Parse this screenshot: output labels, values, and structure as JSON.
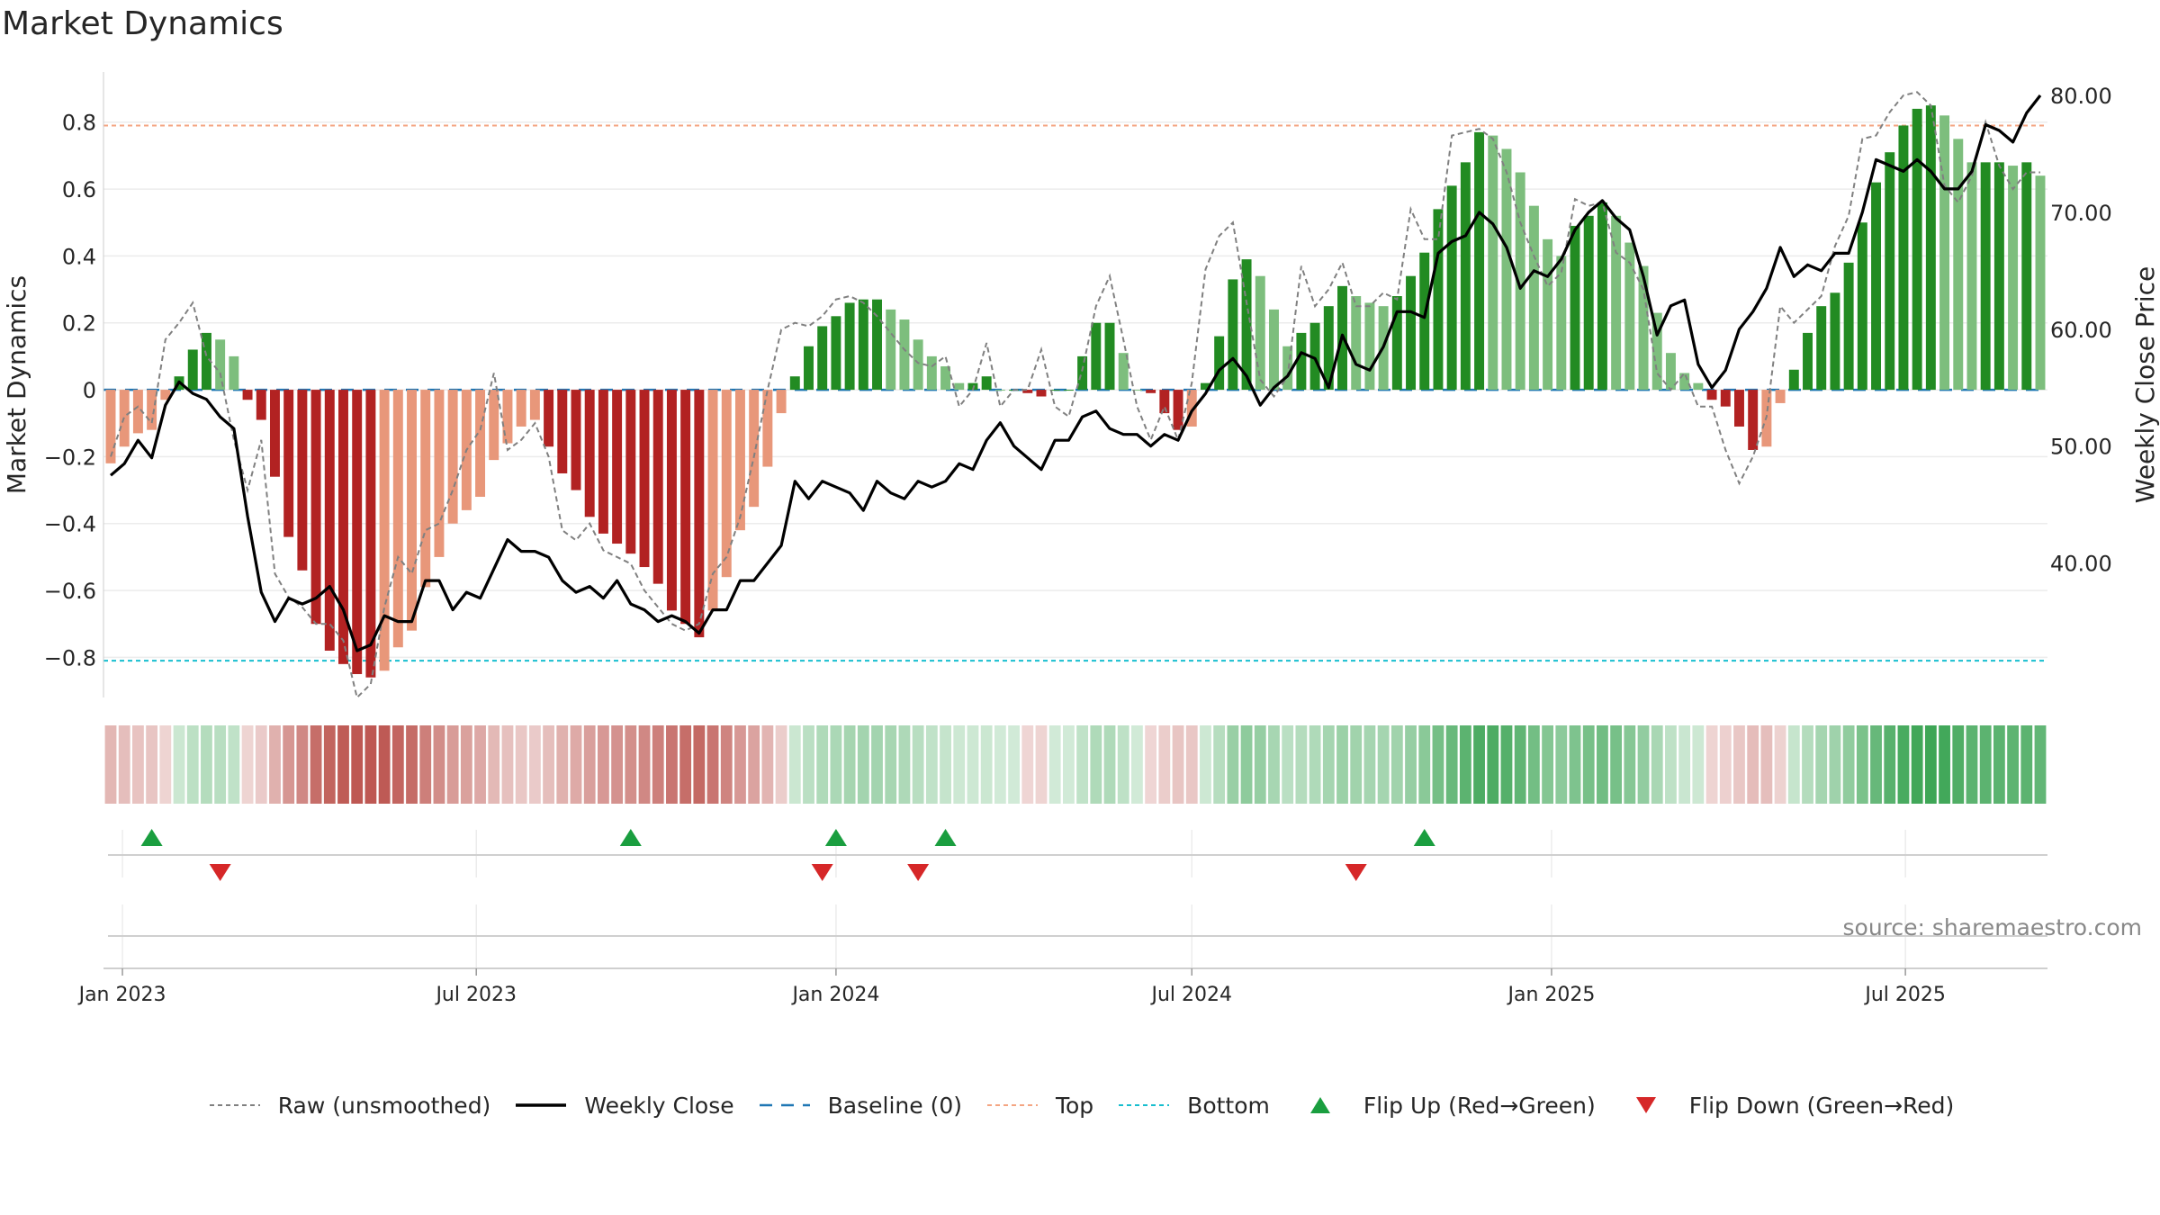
{
  "title": "Market Dynamics",
  "source": "source: sharemaestro.com",
  "colors": {
    "deep_green": "#228B22",
    "light_green": "#7DBE7D",
    "deep_red": "#B22222",
    "light_red": "#E8977A",
    "close": "#000000",
    "raw": "#808080",
    "baseline": "#1F77B4",
    "top": "#F4A582",
    "bottom": "#17BECF",
    "flip_up": "#1A9E3F",
    "flip_down": "#D62728"
  },
  "legend": [
    {
      "key": "raw",
      "label": "Raw (unsmoothed)"
    },
    {
      "key": "close",
      "label": "Weekly Close"
    },
    {
      "key": "baseline",
      "label": "Baseline (0)"
    },
    {
      "key": "top",
      "label": "Top"
    },
    {
      "key": "bottom",
      "label": "Bottom"
    },
    {
      "key": "flip_up",
      "label": "Flip Up (Red→Green)"
    },
    {
      "key": "flip_down",
      "label": "Flip Down (Green→Red)"
    }
  ],
  "chart_data": {
    "type": "bar",
    "title": "Market Dynamics",
    "x_start": "2022-12-26",
    "x_interval_days": 7,
    "y_left": {
      "label": "Market Dynamics",
      "range": [
        -0.92,
        0.95
      ],
      "ticks": [
        0.8,
        0.6,
        0.4,
        0.2,
        0,
        -0.2,
        -0.4,
        -0.6,
        -0.8
      ]
    },
    "y_right": {
      "label": "Weekly Close Price",
      "range": [
        28.5,
        82.0
      ],
      "ticks": [
        "80.00",
        "70.00",
        "60.00",
        "50.00",
        "40.00"
      ]
    },
    "x_ticks": [
      {
        "date": "2023-01-01",
        "label": "Jan 2023"
      },
      {
        "date": "2023-07-01",
        "label": "Jul 2023"
      },
      {
        "date": "2024-01-01",
        "label": "Jan 2024"
      },
      {
        "date": "2024-07-01",
        "label": "Jul 2024"
      },
      {
        "date": "2025-01-01",
        "label": "Jan 2025"
      },
      {
        "date": "2025-07-01",
        "label": "Jul 2025"
      }
    ],
    "reference_lines": {
      "baseline": 0,
      "top": 0.79,
      "bottom": -0.81
    },
    "values": [
      -0.22,
      -0.17,
      -0.13,
      -0.12,
      -0.03,
      0.04,
      0.12,
      0.17,
      0.15,
      0.1,
      -0.03,
      -0.09,
      -0.26,
      -0.44,
      -0.54,
      -0.7,
      -0.78,
      -0.82,
      -0.85,
      -0.86,
      -0.84,
      -0.77,
      -0.72,
      -0.59,
      -0.5,
      -0.4,
      -0.36,
      -0.32,
      -0.21,
      -0.16,
      -0.11,
      -0.09,
      -0.17,
      -0.25,
      -0.3,
      -0.38,
      -0.43,
      -0.46,
      -0.49,
      -0.53,
      -0.58,
      -0.66,
      -0.7,
      -0.74,
      -0.66,
      -0.56,
      -0.42,
      -0.35,
      -0.23,
      -0.07,
      0.04,
      0.13,
      0.19,
      0.22,
      0.26,
      0.27,
      0.27,
      0.24,
      0.21,
      0.15,
      0.1,
      0.07,
      0.02,
      0.02,
      0.04,
      0.0,
      0.0,
      -0.01,
      -0.02,
      0.0,
      0.0,
      0.1,
      0.2,
      0.2,
      0.11,
      0.0,
      -0.01,
      -0.07,
      -0.12,
      -0.11,
      0.02,
      0.16,
      0.33,
      0.39,
      0.34,
      0.24,
      0.13,
      0.17,
      0.2,
      0.25,
      0.31,
      0.28,
      0.26,
      0.25,
      0.28,
      0.34,
      0.41,
      0.54,
      0.61,
      0.68,
      0.77,
      0.76,
      0.72,
      0.65,
      0.55,
      0.45,
      0.4,
      0.49,
      0.52,
      0.56,
      0.52,
      0.44,
      0.37,
      0.23,
      0.11,
      0.05,
      0.02,
      -0.03,
      -0.05,
      -0.11,
      -0.18,
      -0.17,
      -0.04,
      0.06,
      0.17,
      0.25,
      0.29,
      0.38,
      0.5,
      0.62,
      0.71,
      0.79,
      0.84,
      0.85,
      0.82,
      0.75,
      0.68,
      0.68,
      0.68,
      0.67,
      0.68,
      0.64
    ],
    "raw": [
      -0.2,
      -0.08,
      -0.05,
      -0.1,
      0.15,
      0.2,
      0.26,
      0.1,
      0.05,
      -0.15,
      -0.3,
      -0.15,
      -0.55,
      -0.62,
      -0.65,
      -0.7,
      -0.7,
      -0.75,
      -0.92,
      -0.88,
      -0.65,
      -0.5,
      -0.55,
      -0.42,
      -0.4,
      -0.3,
      -0.18,
      -0.12,
      0.05,
      -0.18,
      -0.15,
      -0.1,
      -0.2,
      -0.42,
      -0.45,
      -0.4,
      -0.48,
      -0.5,
      -0.52,
      -0.6,
      -0.65,
      -0.7,
      -0.72,
      -0.7,
      -0.55,
      -0.5,
      -0.38,
      -0.2,
      0.0,
      0.18,
      0.2,
      0.19,
      0.22,
      0.27,
      0.28,
      0.26,
      0.22,
      0.17,
      0.12,
      0.08,
      0.07,
      0.1,
      -0.05,
      0.0,
      0.14,
      -0.05,
      0.0,
      0.0,
      0.12,
      -0.05,
      -0.08,
      0.06,
      0.25,
      0.34,
      0.15,
      -0.05,
      -0.15,
      -0.05,
      -0.15,
      0.02,
      0.36,
      0.46,
      0.5,
      0.26,
      0.03,
      -0.02,
      0.04,
      0.37,
      0.25,
      0.3,
      0.38,
      0.25,
      0.25,
      0.29,
      0.27,
      0.54,
      0.45,
      0.45,
      0.76,
      0.77,
      0.78,
      0.75,
      0.65,
      0.5,
      0.4,
      0.31,
      0.35,
      0.57,
      0.55,
      0.56,
      0.41,
      0.38,
      0.3,
      0.05,
      0.0,
      0.05,
      -0.05,
      -0.05,
      -0.18,
      -0.28,
      -0.2,
      -0.08,
      0.25,
      0.2,
      0.24,
      0.28,
      0.43,
      0.52,
      0.75,
      0.76,
      0.83,
      0.88,
      0.89,
      0.85,
      0.61,
      0.56,
      0.64,
      0.8,
      0.67,
      0.6,
      0.65,
      0.65
    ],
    "close": [
      47.5,
      48.5,
      50.5,
      49.0,
      53.5,
      55.5,
      54.5,
      54.0,
      52.5,
      51.5,
      44.0,
      37.5,
      35.0,
      37.0,
      36.5,
      37.0,
      38.0,
      36.0,
      32.5,
      33.0,
      35.5,
      35.0,
      35.0,
      38.5,
      38.5,
      36.0,
      37.5,
      37.0,
      39.5,
      42.0,
      41.0,
      41.0,
      40.5,
      38.5,
      37.5,
      38.0,
      37.0,
      38.5,
      36.5,
      36.0,
      35.0,
      35.5,
      35.0,
      34.0,
      36.0,
      36.0,
      38.5,
      38.5,
      40.0,
      41.5,
      47.0,
      45.5,
      47.0,
      46.5,
      46.0,
      44.5,
      47.0,
      46.0,
      45.5,
      47.0,
      46.5,
      47.0,
      48.5,
      48.0,
      50.5,
      52.0,
      50.0,
      49.0,
      48.0,
      50.5,
      50.5,
      52.5,
      53.0,
      51.5,
      51.0,
      51.0,
      50.0,
      51.0,
      50.5,
      53.0,
      54.5,
      56.5,
      57.5,
      56.0,
      53.5,
      55.0,
      56.0,
      58.0,
      57.5,
      55.0,
      59.5,
      57.0,
      56.5,
      58.5,
      61.5,
      61.5,
      61.0,
      66.5,
      67.5,
      68.0,
      70.0,
      69.0,
      67.0,
      63.5,
      65.0,
      64.5,
      66.0,
      68.5,
      70.0,
      71.0,
      69.5,
      68.5,
      64.5,
      59.5,
      62.0,
      62.5,
      57.0,
      55.0,
      56.5,
      60.0,
      61.5,
      63.5,
      67.0,
      64.5,
      65.5,
      65.0,
      66.5,
      66.5,
      70.0,
      74.5,
      74.0,
      73.5,
      74.5,
      73.5,
      72.0,
      72.0,
      73.5,
      77.5,
      77.0,
      76.0,
      78.5,
      80.0
    ],
    "flips_up": [
      3,
      38,
      53,
      61,
      96
    ],
    "flips_down": [
      8,
      52,
      59,
      91
    ]
  }
}
